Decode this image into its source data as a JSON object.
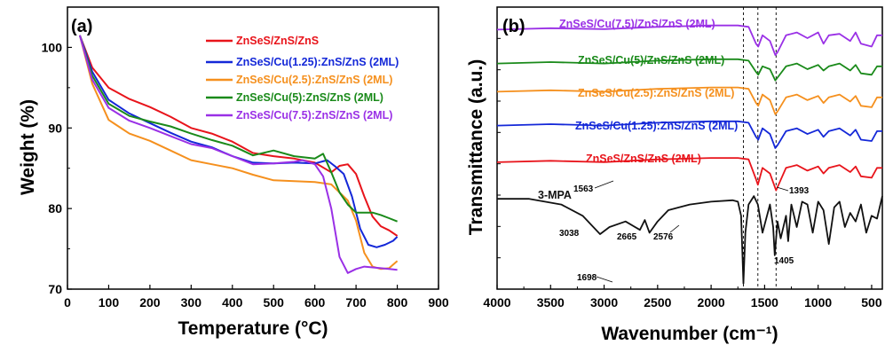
{
  "colors": {
    "red": "#e8141b",
    "blue": "#1428d8",
    "orange": "#f5901e",
    "green": "#1a8a1a",
    "purple": "#9a30e6",
    "black": "#111111"
  },
  "chart_data": [
    {
      "type": "line",
      "panel_label": "(a)",
      "xlabel": "Temperature (°C)",
      "ylabel": "Weight (%)",
      "xlim": [
        0,
        900
      ],
      "ylim": [
        70,
        105
      ],
      "xticks": [
        "0",
        "100",
        "200",
        "300",
        "400",
        "500",
        "600",
        "700",
        "800",
        "900"
      ],
      "yticks": [
        "70",
        "80",
        "90",
        "100"
      ],
      "legend_position": "top-right",
      "series": [
        {
          "name": "ZnSeS/ZnS/ZnS",
          "color": "#e8141b",
          "x": [
            30,
            60,
            100,
            150,
            200,
            250,
            300,
            350,
            400,
            450,
            500,
            550,
            600,
            640,
            660,
            680,
            700,
            720,
            740,
            760,
            780,
            800
          ],
          "y": [
            101.5,
            97.5,
            95.0,
            93.6,
            92.6,
            91.4,
            90.0,
            89.3,
            88.3,
            86.9,
            86.5,
            86.2,
            85.7,
            84.5,
            85.3,
            85.5,
            84.3,
            81.5,
            79.0,
            77.8,
            77.3,
            76.6
          ]
        },
        {
          "name": "ZnSeS/Cu(1.25):ZnS/ZnS (2ML)",
          "color": "#1428d8",
          "x": [
            30,
            60,
            100,
            150,
            200,
            250,
            300,
            350,
            400,
            450,
            500,
            550,
            600,
            630,
            650,
            670,
            690,
            710,
            730,
            750,
            770,
            790,
            800
          ],
          "y": [
            101.5,
            97.0,
            93.5,
            91.8,
            90.6,
            89.4,
            88.3,
            87.6,
            86.5,
            85.7,
            85.6,
            85.7,
            85.6,
            86.0,
            85.2,
            84.3,
            81.5,
            77.5,
            75.5,
            75.2,
            75.5,
            76.0,
            76.5
          ]
        },
        {
          "name": "ZnSeS/Cu(2.5):ZnS/ZnS (2ML)",
          "color": "#f5901e",
          "x": [
            30,
            60,
            100,
            150,
            200,
            250,
            300,
            350,
            400,
            450,
            500,
            550,
            600,
            640,
            660,
            680,
            700,
            720,
            740,
            760,
            780,
            800
          ],
          "y": [
            101.5,
            95.5,
            91.0,
            89.3,
            88.4,
            87.2,
            86.0,
            85.5,
            85.0,
            84.2,
            83.5,
            83.4,
            83.3,
            83.0,
            82.0,
            81.0,
            78.5,
            74.5,
            72.8,
            72.5,
            72.6,
            73.5
          ]
        },
        {
          "name": "ZnSeS/Cu(5):ZnS/ZnS (2ML)",
          "color": "#1a8a1a",
          "x": [
            30,
            60,
            100,
            150,
            200,
            250,
            300,
            350,
            400,
            450,
            500,
            550,
            600,
            620,
            640,
            660,
            680,
            700,
            720,
            740,
            760,
            780,
            800
          ],
          "y": [
            101.5,
            96.5,
            93.0,
            91.5,
            90.8,
            90.2,
            89.3,
            88.5,
            87.8,
            86.6,
            87.2,
            86.5,
            86.2,
            86.8,
            84.5,
            82.0,
            80.5,
            79.5,
            79.5,
            79.5,
            79.2,
            78.8,
            78.4
          ]
        },
        {
          "name": "ZnSeS/Cu(7.5):ZnS/ZnS (2ML)",
          "color": "#9a30e6",
          "x": [
            30,
            60,
            100,
            150,
            200,
            250,
            300,
            350,
            400,
            450,
            500,
            550,
            570,
            600,
            620,
            640,
            660,
            680,
            700,
            720,
            740,
            760,
            780,
            800
          ],
          "y": [
            101.5,
            96.0,
            92.5,
            90.9,
            90.0,
            89.0,
            88.0,
            87.5,
            86.5,
            85.5,
            85.6,
            85.8,
            86.0,
            85.5,
            84.0,
            80.0,
            74.0,
            72.0,
            72.5,
            72.8,
            72.7,
            72.6,
            72.5,
            72.4
          ]
        }
      ]
    },
    {
      "type": "line",
      "panel_label": "(b)",
      "xlabel": "Wavenumber (cm⁻¹)",
      "ylabel": "Transmittance (a.u.)",
      "xlim": [
        4000,
        400
      ],
      "ylim": [
        0,
        1
      ],
      "xticks": [
        "4000",
        "3500",
        "3000",
        "2500",
        "2000",
        "1500",
        "1000",
        "500"
      ],
      "reference_lines_x": [
        1698,
        1563,
        1393
      ],
      "series": [
        {
          "name": "ZnSeS/Cu(7.5)/ZnS/ZnS (2ML)",
          "color": "#9a30e6",
          "x": [
            4000,
            3500,
            3000,
            2500,
            2000,
            1750,
            1650,
            1580,
            1560,
            1520,
            1450,
            1400,
            1380,
            1300,
            1200,
            1100,
            1000,
            950,
            900,
            800,
            700,
            650,
            600,
            500,
            450,
            400
          ],
          "y": [
            0.92,
            0.925,
            0.922,
            0.93,
            0.935,
            0.935,
            0.93,
            0.87,
            0.86,
            0.9,
            0.88,
            0.83,
            0.84,
            0.9,
            0.91,
            0.89,
            0.91,
            0.87,
            0.9,
            0.905,
            0.88,
            0.91,
            0.87,
            0.86,
            0.9,
            0.9
          ]
        },
        {
          "name": "ZnSeS/Cu(5)/ZnS/ZnS (2ML)",
          "color": "#1a8a1a",
          "x": [
            4000,
            3500,
            3000,
            2500,
            2000,
            1750,
            1650,
            1580,
            1560,
            1520,
            1450,
            1400,
            1380,
            1300,
            1200,
            1100,
            1000,
            950,
            900,
            800,
            700,
            650,
            600,
            500,
            450,
            400
          ],
          "y": [
            0.8,
            0.805,
            0.8,
            0.81,
            0.815,
            0.815,
            0.81,
            0.77,
            0.76,
            0.79,
            0.78,
            0.74,
            0.75,
            0.79,
            0.8,
            0.78,
            0.795,
            0.775,
            0.79,
            0.8,
            0.775,
            0.795,
            0.765,
            0.76,
            0.79,
            0.79
          ]
        },
        {
          "name": "ZnSeS/Cu(2.5):ZnS/ZnS (2ML)",
          "color": "#f5901e",
          "x": [
            4000,
            3500,
            3000,
            2500,
            2000,
            1750,
            1650,
            1580,
            1560,
            1520,
            1450,
            1400,
            1380,
            1300,
            1200,
            1100,
            1000,
            950,
            900,
            800,
            700,
            650,
            600,
            500,
            450,
            400
          ],
          "y": [
            0.7,
            0.705,
            0.7,
            0.71,
            0.715,
            0.715,
            0.71,
            0.66,
            0.65,
            0.69,
            0.67,
            0.62,
            0.63,
            0.68,
            0.69,
            0.67,
            0.685,
            0.66,
            0.68,
            0.69,
            0.665,
            0.685,
            0.65,
            0.645,
            0.68,
            0.68
          ]
        },
        {
          "name": "ZnSeS/Cu(1.25):ZnS/ZnS (2ML)",
          "color": "#1428d8",
          "x": [
            4000,
            3500,
            3000,
            2500,
            2000,
            1750,
            1650,
            1580,
            1560,
            1520,
            1450,
            1400,
            1380,
            1300,
            1200,
            1100,
            1000,
            950,
            900,
            800,
            700,
            650,
            600,
            500,
            450,
            400
          ],
          "y": [
            0.58,
            0.585,
            0.58,
            0.59,
            0.595,
            0.595,
            0.59,
            0.54,
            0.53,
            0.57,
            0.55,
            0.5,
            0.51,
            0.56,
            0.57,
            0.55,
            0.565,
            0.54,
            0.56,
            0.57,
            0.545,
            0.565,
            0.53,
            0.525,
            0.56,
            0.56
          ]
        },
        {
          "name": "ZnSeS/ZnS/ZnS (2ML)",
          "color": "#e8141b",
          "x": [
            4000,
            3500,
            3000,
            2500,
            2000,
            1750,
            1650,
            1580,
            1563,
            1520,
            1450,
            1393,
            1370,
            1300,
            1200,
            1100,
            1000,
            950,
            900,
            800,
            700,
            650,
            600,
            500,
            450,
            400
          ],
          "y": [
            0.45,
            0.455,
            0.45,
            0.46,
            0.465,
            0.465,
            0.46,
            0.39,
            0.37,
            0.43,
            0.41,
            0.35,
            0.37,
            0.43,
            0.44,
            0.42,
            0.435,
            0.41,
            0.43,
            0.44,
            0.415,
            0.435,
            0.4,
            0.395,
            0.43,
            0.43
          ]
        },
        {
          "name": "3-MPA",
          "color": "#111111",
          "x": [
            4000,
            3700,
            3400,
            3200,
            3038,
            2950,
            2800,
            2665,
            2620,
            2576,
            2500,
            2400,
            2200,
            2000,
            1800,
            1750,
            1720,
            1698,
            1680,
            1650,
            1600,
            1563,
            1520,
            1450,
            1420,
            1405,
            1380,
            1350,
            1300,
            1280,
            1250,
            1200,
            1150,
            1100,
            1050,
            1000,
            950,
            900,
            850,
            800,
            750,
            700,
            650,
            600,
            550,
            500,
            450,
            400
          ],
          "y": [
            0.32,
            0.32,
            0.3,
            0.26,
            0.195,
            0.22,
            0.24,
            0.21,
            0.245,
            0.2,
            0.24,
            0.28,
            0.3,
            0.31,
            0.315,
            0.31,
            0.26,
            0.02,
            0.2,
            0.3,
            0.33,
            0.3,
            0.2,
            0.3,
            0.22,
            0.12,
            0.24,
            0.18,
            0.26,
            0.17,
            0.3,
            0.22,
            0.31,
            0.3,
            0.2,
            0.31,
            0.28,
            0.16,
            0.29,
            0.31,
            0.22,
            0.27,
            0.24,
            0.3,
            0.2,
            0.26,
            0.25,
            0.33
          ]
        }
      ],
      "annotations": [
        "3038",
        "2665",
        "2576",
        "1698",
        "1563",
        "1393",
        "1405"
      ]
    }
  ]
}
